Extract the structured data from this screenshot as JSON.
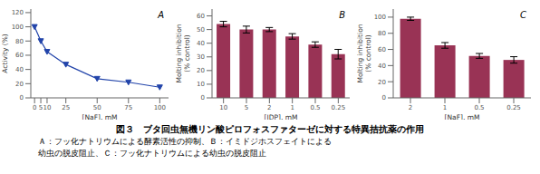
{
  "title": "図３　ブタ回虫無機リン酸ピロフォスファターゼに対する特異拮抗薬の作用",
  "annotations": [
    "Ａ：フッ化ナトリウムによる酵素活性の抑制、Ｂ：イミドジホスフェイトによる",
    "幼虫の脱皮阻止、Ｃ：フッ化ナトリウムによる幼虫の脱皮阻止"
  ],
  "chart_data": [
    {
      "type": "line",
      "title": "A",
      "x": [
        0,
        5,
        10,
        25,
        50,
        75,
        100
      ],
      "values": [
        100,
        80,
        65,
        47,
        27,
        22,
        15
      ],
      "xlabel": "[NaF], mM",
      "ylabel": "Activity (%)",
      "xlim": [
        -3,
        107
      ],
      "ylim": [
        0,
        125
      ],
      "xticks": [
        0,
        5,
        10,
        25,
        50,
        75,
        100
      ],
      "yticks": [
        0,
        20,
        40,
        60,
        80,
        100,
        120
      ],
      "color": "#2244aa",
      "marker": "triangle_down",
      "grid": false
    },
    {
      "type": "bar",
      "title": "B",
      "categories": [
        "10",
        "5",
        "2",
        "1",
        "0.5",
        "0.25"
      ],
      "values": [
        54,
        50,
        50,
        45,
        39,
        32
      ],
      "yerr": [
        2.0,
        2.5,
        1.5,
        2.0,
        2.0,
        3.5
      ],
      "xlabel": "[IDP], mM",
      "ylabel": "Molting inhibition\n(% control)",
      "ylim": [
        0,
        65
      ],
      "yticks": [
        0,
        10,
        20,
        30,
        40,
        50,
        60
      ],
      "color": "#993355",
      "grid": false
    },
    {
      "type": "bar",
      "title": "C",
      "categories": [
        "2",
        "1",
        "0.5",
        "0.25"
      ],
      "values": [
        98,
        65,
        52,
        47
      ],
      "yerr": [
        2.0,
        3.5,
        3.0,
        4.0
      ],
      "xlabel": "[NaF], mM",
      "ylabel": "Molting inhibition\n(% control)",
      "ylim": [
        0,
        110
      ],
      "yticks": [
        0,
        20,
        40,
        60,
        80,
        100
      ],
      "color": "#993355",
      "grid": false
    }
  ]
}
